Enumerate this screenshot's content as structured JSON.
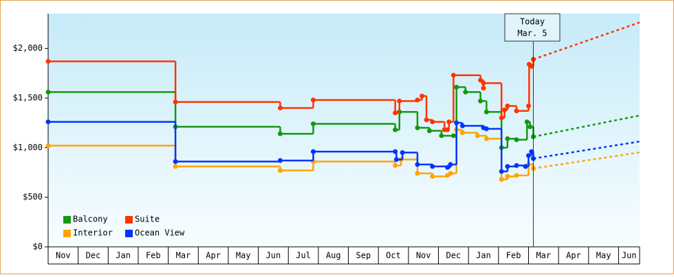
{
  "chart_data": {
    "type": "step",
    "xlim": [
      0,
      19.7
    ],
    "ylim": [
      0,
      2350
    ],
    "xticks": [
      {
        "value": 0.5,
        "label": "Nov"
      },
      {
        "value": 1.5,
        "label": "Dec"
      },
      {
        "value": 2.5,
        "label": "Jan"
      },
      {
        "value": 3.5,
        "label": "Feb"
      },
      {
        "value": 4.5,
        "label": "Mar"
      },
      {
        "value": 5.5,
        "label": "Apr"
      },
      {
        "value": 6.5,
        "label": "May"
      },
      {
        "value": 7.5,
        "label": "Jun"
      },
      {
        "value": 8.5,
        "label": "Jul"
      },
      {
        "value": 9.5,
        "label": "Aug"
      },
      {
        "value": 10.5,
        "label": "Sep"
      },
      {
        "value": 11.5,
        "label": "Oct"
      },
      {
        "value": 12.5,
        "label": "Nov"
      },
      {
        "value": 13.5,
        "label": "Dec"
      },
      {
        "value": 14.5,
        "label": "Jan"
      },
      {
        "value": 15.5,
        "label": "Feb"
      },
      {
        "value": 16.5,
        "label": "Mar"
      },
      {
        "value": 17.5,
        "label": "Apr"
      },
      {
        "value": 18.5,
        "label": "May"
      },
      {
        "value": 19.5,
        "label": "Jun"
      }
    ],
    "yticks": [
      {
        "value": 0,
        "label": "$0"
      },
      {
        "value": 500,
        "label": "$500"
      },
      {
        "value": 1000,
        "label": "$1,000"
      },
      {
        "value": 1500,
        "label": "$1,500"
      },
      {
        "value": 2000,
        "label": "$2,000"
      }
    ],
    "annotation": {
      "x": 16.16,
      "lines": [
        "Today",
        "Mar. 5"
      ]
    },
    "projection_x": [
      16.16,
      19.7
    ],
    "series": [
      {
        "name": "Balcony",
        "color": "#119911",
        "x": [
          0,
          4.24,
          7.73,
          8.83,
          11.56,
          11.7,
          12.3,
          12.7,
          13.1,
          13.5,
          13.6,
          13.9,
          14.4,
          14.6,
          15.1,
          15.3,
          15.6,
          15.95,
          16.05,
          16.16
        ],
        "values": [
          1560,
          1210,
          1140,
          1240,
          1180,
          1360,
          1200,
          1170,
          1120,
          1120,
          1610,
          1560,
          1470,
          1360,
          1000,
          1090,
          1080,
          1260,
          1210,
          1110
        ],
        "projection": [
          1110,
          1324
        ]
      },
      {
        "name": "Suite",
        "color": "#ff3300",
        "x": [
          0,
          4.24,
          7.73,
          8.83,
          11.56,
          11.7,
          12.3,
          12.45,
          12.6,
          12.8,
          13.2,
          13.3,
          13.35,
          13.5,
          14.4,
          14.5,
          14.5,
          15.1,
          15.2,
          15.3,
          15.6,
          16.0,
          16.02,
          16.1,
          16.16
        ],
        "values": [
          1870,
          1460,
          1400,
          1480,
          1350,
          1470,
          1480,
          1520,
          1280,
          1260,
          1180,
          1180,
          1260,
          1730,
          1680,
          1600,
          1650,
          1300,
          1380,
          1420,
          1370,
          1420,
          1840,
          1820,
          1890
        ],
        "projection": [
          1890,
          2262
        ]
      },
      {
        "name": "Interior",
        "color": "#ffa500",
        "x": [
          0,
          4.24,
          7.73,
          8.83,
          11.56,
          11.75,
          12.3,
          12.8,
          13.3,
          13.4,
          13.6,
          13.8,
          14.3,
          14.6,
          15.1,
          15.3,
          15.6,
          16.0,
          16.16
        ],
        "values": [
          1020,
          810,
          770,
          860,
          820,
          880,
          740,
          710,
          720,
          740,
          1180,
          1150,
          1120,
          1090,
          680,
          710,
          720,
          830,
          790
        ],
        "projection": [
          790,
          952
        ]
      },
      {
        "name": "Ocean View",
        "color": "#0033ff",
        "x": [
          0,
          4.24,
          7.73,
          8.83,
          11.56,
          11.6,
          11.8,
          12.3,
          12.8,
          13.3,
          13.4,
          13.6,
          13.8,
          14.5,
          14.6,
          15.1,
          15.3,
          15.6,
          15.9,
          16.0,
          16.1,
          16.16
        ],
        "values": [
          1260,
          860,
          870,
          960,
          960,
          880,
          950,
          830,
          810,
          800,
          830,
          1250,
          1220,
          1200,
          1190,
          760,
          810,
          820,
          810,
          920,
          960,
          890
        ],
        "projection": [
          890,
          1062
        ]
      }
    ]
  }
}
